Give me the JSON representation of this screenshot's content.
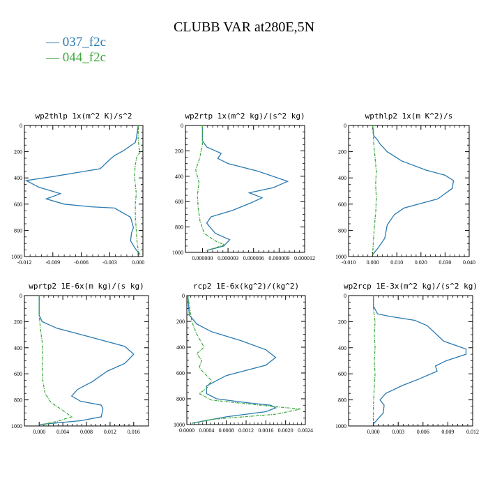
{
  "title": "CLUBB VAR at280E,5N",
  "legend": [
    {
      "label": "— 037_f2c",
      "color": "#2a7ab0"
    },
    {
      "label": "— 044_f2c",
      "color": "#3ea83e"
    }
  ],
  "chart_data": [
    {
      "type": "line",
      "title": "wp2thlp   1x(m^2 K)/s^2",
      "xlim": [
        -0.012,
        0.0005
      ],
      "ylim": [
        1000,
        0
      ],
      "x_ticks": [
        "-0.012",
        "-0.009",
        "-0.006",
        "-0.003",
        "0.000"
      ],
      "x_tick_values": [
        -0.012,
        -0.009,
        -0.006,
        -0.003,
        0.0
      ],
      "y_ticks": [
        "0",
        "200",
        "400",
        "600",
        "800",
        "1000"
      ],
      "y_tick_values": [
        0,
        200,
        400,
        600,
        800,
        1000
      ],
      "series": [
        {
          "name": "037_f2c",
          "color": "#2a7ab0",
          "x": [
            0.0,
            -0.0002,
            -0.0003,
            -0.0015,
            -0.0025,
            -0.003,
            -0.004,
            -0.009,
            -0.0118,
            -0.0105,
            -0.0082,
            -0.0097,
            -0.0078,
            -0.005,
            -0.0025,
            -0.0008,
            -0.0005,
            -0.0007,
            -0.0008,
            -0.0003,
            0.0002
          ],
          "y": [
            0,
            100,
            130,
            190,
            230,
            260,
            330,
            390,
            420,
            470,
            520,
            560,
            600,
            620,
            630,
            700,
            780,
            820,
            880,
            940,
            985
          ]
        },
        {
          "name": "044_f2c",
          "color": "#3ea83e",
          "dashed": true,
          "x": [
            0.0,
            0.0,
            0.0001,
            0.0003,
            -0.0001,
            -0.0003,
            -0.0004,
            -0.0003,
            -0.0002,
            -0.0003,
            -0.0003,
            -0.0002,
            -0.0001,
            0.0,
            0.0001
          ],
          "y": [
            0,
            100,
            180,
            200,
            230,
            300,
            380,
            450,
            520,
            600,
            700,
            800,
            900,
            950,
            985
          ]
        }
      ]
    },
    {
      "type": "line",
      "title": "wp2rtp   1x(m^2 kg)/(s^2 kg)",
      "xlim": [
        -2e-06,
        1.2e-05
      ],
      "ylim": [
        1000,
        0
      ],
      "x_ticks": [
        "0.000000",
        "0.000003",
        "0.000006",
        "0.000009",
        "0.000012"
      ],
      "x_tick_values": [
        0.0,
        3e-06,
        6e-06,
        9e-06,
        1.2e-05
      ],
      "y_ticks": [
        "0",
        "200",
        "400",
        "600",
        "800",
        "1000"
      ],
      "y_tick_values": [
        0,
        200,
        400,
        600,
        800,
        1000
      ],
      "series": [
        {
          "name": "037_f2c",
          "color": "#2a7ab0",
          "x": [
            0.0,
            0.0,
            5e-07,
            2.2e-06,
            1.8e-06,
            3e-06,
            6.5e-06,
            1e-05,
            8.3e-06,
            5.5e-06,
            7e-06,
            5.7e-06,
            3.5e-06,
            1e-06,
            5e-07,
            1.5e-06,
            3.2e-06,
            2.5e-06,
            5e-07
          ],
          "y": [
            0,
            120,
            170,
            220,
            260,
            300,
            360,
            440,
            490,
            530,
            570,
            610,
            670,
            720,
            770,
            850,
            900,
            950,
            985
          ]
        },
        {
          "name": "044_f2c",
          "color": "#3ea83e",
          "dashed": true,
          "x": [
            0.0,
            0.0,
            -3e-07,
            -8e-07,
            -4e-07,
            -6e-07,
            -5e-07,
            -3e-07,
            2e-07,
            1.5e-06,
            2.6e-06,
            5e-07
          ],
          "y": [
            0,
            150,
            250,
            350,
            450,
            550,
            650,
            750,
            850,
            910,
            940,
            985
          ]
        }
      ]
    },
    {
      "type": "line",
      "title": "wpthlp2   1x(m K^2)/s",
      "xlim": [
        -0.01,
        0.04
      ],
      "ylim": [
        1000,
        0
      ],
      "x_ticks": [
        "-0.010",
        "0.000",
        "0.010",
        "0.020",
        "0.030",
        "0.040"
      ],
      "x_tick_values": [
        -0.01,
        0.0,
        0.01,
        0.02,
        0.03,
        0.04
      ],
      "y_ticks": [
        "0",
        "200",
        "400",
        "600",
        "800",
        "1000"
      ],
      "y_tick_values": [
        0,
        200,
        400,
        600,
        800,
        1000
      ],
      "series": [
        {
          "name": "037_f2c",
          "color": "#2a7ab0",
          "x": [
            0.0,
            0.0005,
            0.002,
            0.003,
            0.006,
            0.012,
            0.022,
            0.03,
            0.0335,
            0.033,
            0.027,
            0.013,
            0.009,
            0.006,
            0.005,
            0.002,
            0.0
          ],
          "y": [
            0,
            80,
            110,
            140,
            200,
            270,
            340,
            380,
            420,
            480,
            560,
            630,
            680,
            760,
            860,
            940,
            985
          ]
        },
        {
          "name": "044_f2c",
          "color": "#3ea83e",
          "dashed": true,
          "x": [
            0.0,
            0.0005,
            0.001,
            0.0015,
            0.0012,
            0.0015,
            0.0013,
            0.0008,
            0.0003,
            0.0
          ],
          "y": [
            0,
            150,
            250,
            350,
            450,
            550,
            650,
            750,
            880,
            985
          ]
        }
      ]
    },
    {
      "type": "line",
      "title": "wprtp2   1E-6x(m kg)/(s kg)",
      "xlim": [
        -0.0025,
        0.0185
      ],
      "ylim": [
        1000,
        0
      ],
      "x_ticks": [
        "0.000",
        "0.004",
        "0.008",
        "0.012",
        "0.016"
      ],
      "x_tick_values": [
        0.0,
        0.004,
        0.008,
        0.012,
        0.016
      ],
      "y_ticks": [
        "0",
        "200",
        "400",
        "600",
        "800",
        "1000"
      ],
      "y_tick_values": [
        0,
        200,
        400,
        600,
        800,
        1000
      ],
      "series": [
        {
          "name": "037_f2c",
          "color": "#2a7ab0",
          "x": [
            0.0,
            0.0,
            0.0005,
            0.003,
            0.008,
            0.0145,
            0.016,
            0.0145,
            0.0115,
            0.009,
            0.0065,
            0.0055,
            0.007,
            0.0105,
            0.0108,
            0.0105,
            0.007,
            0.001,
            0.0
          ],
          "y": [
            0,
            150,
            200,
            250,
            310,
            390,
            450,
            520,
            580,
            660,
            720,
            770,
            810,
            840,
            870,
            930,
            960,
            985,
            990
          ]
        },
        {
          "name": "044_f2c",
          "color": "#3ea83e",
          "dashed": true,
          "x": [
            0.0,
            0.0,
            0.0002,
            0.0005,
            0.0006,
            0.0005,
            0.0006,
            0.001,
            0.002,
            0.004,
            0.0055,
            0.003,
            0.0005
          ],
          "y": [
            0,
            150,
            250,
            350,
            450,
            550,
            650,
            750,
            820,
            880,
            930,
            965,
            990
          ]
        }
      ]
    },
    {
      "type": "line",
      "title": "rcp2   1E-6x(kg^2)/(kg^2)",
      "xlim": [
        0.0,
        0.0024
      ],
      "ylim": [
        1000,
        0
      ],
      "x_ticks": [
        "0.0000",
        "0.0004",
        "0.0008",
        "0.0012",
        "0.0016",
        "0.0020",
        "0.0024"
      ],
      "x_tick_values": [
        0.0,
        0.0004,
        0.0008,
        0.0012,
        0.0016,
        0.002,
        0.0024
      ],
      "y_ticks": [
        "0",
        "200",
        "400",
        "600",
        "800",
        "1000"
      ],
      "y_tick_values": [
        0,
        200,
        400,
        600,
        800,
        1000
      ],
      "series": [
        {
          "name": "037_f2c",
          "color": "#2a7ab0",
          "x": [
            2e-05,
            5e-05,
            0.0002,
            0.0005,
            0.0011,
            0.0016,
            0.0018,
            0.0016,
            0.0012,
            0.0008,
            0.0006,
            0.0004,
            0.0004,
            0.0006,
            0.0012,
            0.0017,
            0.0018,
            0.0016,
            0.0008,
            0.0001
          ],
          "y": [
            0,
            150,
            220,
            280,
            350,
            420,
            480,
            540,
            580,
            620,
            660,
            700,
            760,
            800,
            830,
            850,
            870,
            900,
            940,
            990
          ]
        },
        {
          "name": "044_f2c",
          "color": "#3ea83e",
          "dashed": true,
          "x": [
            2e-05,
            0.0001,
            0.0002,
            0.00035,
            0.0002,
            0.0003,
            0.00025,
            0.0004,
            0.0005,
            0.0004,
            0.00025,
            0.0005,
            0.0015,
            0.0023,
            0.0018,
            0.0005,
            0.0001
          ],
          "y": [
            0,
            200,
            300,
            400,
            450,
            500,
            560,
            620,
            660,
            720,
            760,
            810,
            850,
            880,
            920,
            960,
            990
          ]
        }
      ]
    },
    {
      "type": "line",
      "title": "wp2rcp   1E-3x(m^2 kg)/(s^2 kg)",
      "xlim": [
        -0.003,
        0.012
      ],
      "ylim": [
        1000,
        0
      ],
      "x_ticks": [
        "0.000",
        "0.003",
        "0.006",
        "0.009",
        "0.012"
      ],
      "x_tick_values": [
        0.0,
        0.003,
        0.006,
        0.009,
        0.012
      ],
      "y_ticks": [
        "0",
        "200",
        "400",
        "600",
        "800",
        "1000"
      ],
      "y_tick_values": [
        0,
        200,
        400,
        600,
        800,
        1000
      ],
      "series": [
        {
          "name": "037_f2c",
          "color": "#2a7ab0",
          "x": [
            0.0,
            0.0,
            0.0005,
            0.002,
            0.005,
            0.0065,
            0.0085,
            0.0112,
            0.0112,
            0.0088,
            0.0075,
            0.0077,
            0.0055,
            0.0035,
            0.0015,
            0.0008,
            0.0013,
            0.0012,
            0.0005,
            0.0
          ],
          "y": [
            0,
            80,
            140,
            160,
            190,
            230,
            350,
            410,
            450,
            500,
            540,
            580,
            640,
            690,
            750,
            800,
            840,
            900,
            950,
            985
          ]
        },
        {
          "name": "044_f2c",
          "color": "#3ea83e",
          "dashed": true,
          "x": [
            0.0,
            0.0,
            0.0002,
            0.0001,
            0.0002,
            0.0001,
            0.0002,
            0.0001,
            0.0,
            0.0
          ],
          "y": [
            0,
            100,
            200,
            300,
            400,
            500,
            600,
            700,
            850,
            985
          ]
        }
      ]
    }
  ]
}
